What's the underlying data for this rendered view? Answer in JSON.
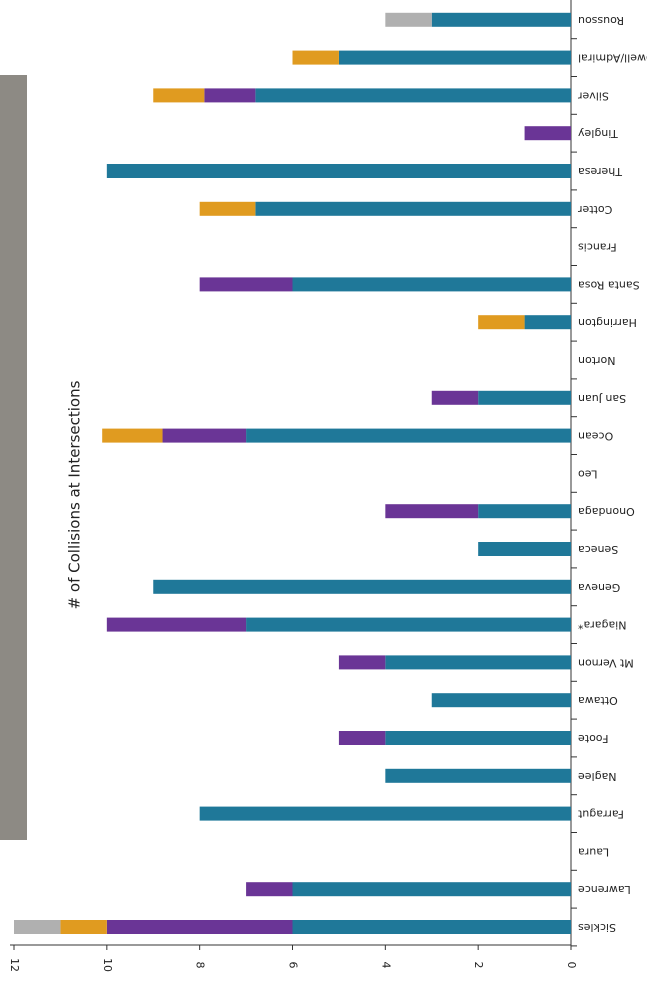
{
  "chart_data": {
    "type": "bar",
    "orientation": "horizontal",
    "stacked": true,
    "y_label": "# of Collisions at Intersections",
    "categories": [
      "Sickles",
      "Lawrence",
      "Laura",
      "Farragut",
      "Naglee",
      "Foote",
      "Ottawa",
      "Mt Vernon",
      "Niagara*",
      "Geneva",
      "Seneca",
      "Onondaga",
      "Leo",
      "Ocean",
      "San Juan",
      "Norton",
      "Harrington",
      "Santa Rosa",
      "Francis",
      "Cotter",
      "Theresa",
      "Tingley",
      "Silver",
      "Powell/Admiral",
      "Roussou"
    ],
    "series": [
      {
        "color": "#1f7899",
        "values": [
          6,
          6,
          0,
          8,
          4,
          4,
          3,
          4,
          7,
          9,
          2,
          2,
          0,
          7,
          2,
          0,
          1,
          6,
          0,
          6.8,
          10,
          0,
          6.8,
          5,
          3
        ]
      },
      {
        "color": "#6a3596",
        "values": [
          4,
          1,
          0,
          0,
          0,
          1,
          0,
          1,
          3,
          0,
          0,
          2,
          0,
          1.8,
          1,
          0,
          0,
          2,
          0,
          0,
          0,
          1,
          1.1,
          0,
          0
        ]
      },
      {
        "color": "#e09b20",
        "values": [
          1,
          0,
          0,
          0,
          0,
          0,
          0,
          0,
          0,
          0,
          0,
          0,
          0,
          1.3,
          0,
          0,
          1,
          0,
          0,
          1.2,
          0,
          0,
          1.1,
          1,
          0
        ]
      },
      {
        "color": "#b0b0b0",
        "values": [
          1,
          0,
          0,
          0,
          0,
          0,
          0,
          0,
          0,
          0,
          0,
          0,
          0,
          0,
          0,
          0,
          0,
          0,
          0,
          0,
          0,
          0,
          0,
          0,
          1
        ]
      }
    ],
    "ylim": [
      0,
      12
    ],
    "yticks": [
      0,
      2,
      4,
      6,
      8,
      10,
      12
    ]
  }
}
